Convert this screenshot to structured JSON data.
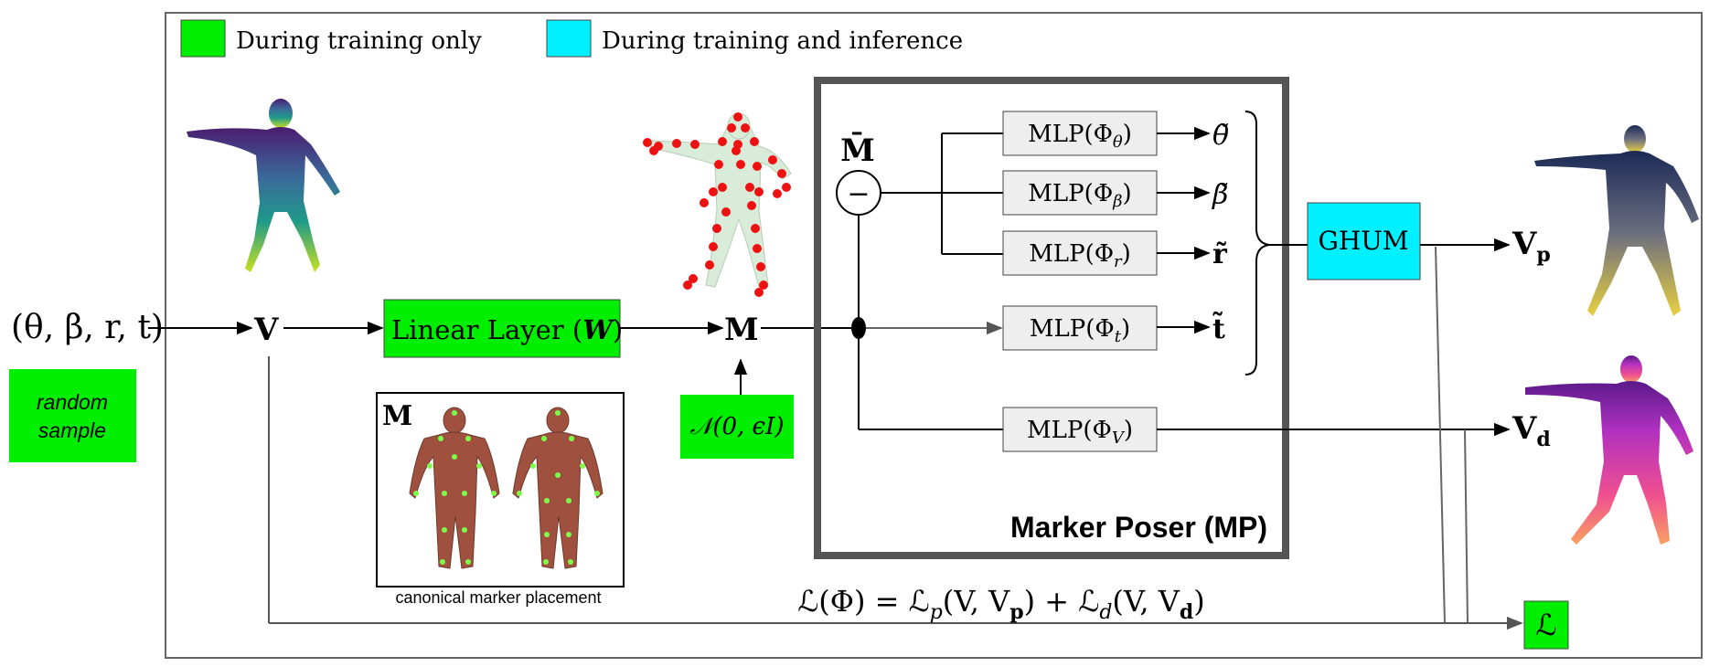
{
  "legend": {
    "training_only": "During training only",
    "training_and_inference": "During training and inference"
  },
  "colors": {
    "training_only": "#00ee00",
    "training_and_inference": "#00f0ff",
    "mlp_box": "#eeeeee",
    "marker_poser_border": "#555555",
    "marker": "#ff1a1a"
  },
  "inputs": {
    "params": "(θ, β, r, t)",
    "random_sample": "random\nsample",
    "V": "V",
    "M": "M",
    "noise": "𝒩(0, ϵI)"
  },
  "linear_layer": {
    "label": "Linear Layer (",
    "weight": "W",
    "close": ")"
  },
  "marker_placement": {
    "M": "M",
    "caption": "canonical marker placement"
  },
  "marker_poser": {
    "title": "Marker Poser (MP)",
    "mean_marker": "M̄",
    "minus": "−",
    "mlps": [
      {
        "label": "MLP(Φ",
        "sub": "θ",
        "close": ")",
        "output": "θ̃"
      },
      {
        "label": "MLP(Φ",
        "sub": "β",
        "close": ")",
        "output": "β̃"
      },
      {
        "label": "MLP(Φ",
        "sub": "r",
        "close": ")",
        "output": "r̃"
      },
      {
        "label": "MLP(Φ",
        "sub": "t",
        "close": ")",
        "output": "t̃"
      },
      {
        "label": "MLP(Φ",
        "sub": "V",
        "close": ")",
        "output": ""
      }
    ]
  },
  "ghum": "GHUM",
  "outputs": {
    "Vp": "V",
    "Vp_sub": "p",
    "Vd": "V",
    "Vd_sub": "d"
  },
  "loss": {
    "formula": "ℒ(Φ) = ℒ",
    "p": "p",
    "mid1": "(V, V",
    "sub_p": "p",
    "mid2": ") + ℒ",
    "d": "d",
    "mid3": "(V,  V",
    "sub_d": "d",
    "end": ")",
    "box": "ℒ"
  },
  "icons": {
    "figures": [
      "human-mesh-viridis",
      "human-markers",
      "human-mesh-predicted",
      "human-mesh-displacement",
      "body-front-markers",
      "body-back-markers"
    ]
  }
}
